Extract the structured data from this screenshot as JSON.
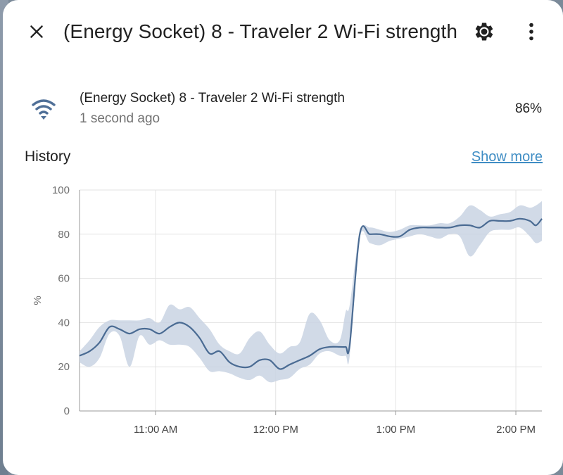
{
  "dialog": {
    "title": "(Energy Socket) 8 - Traveler 2 Wi-Fi strength",
    "close_icon": "close-icon",
    "settings_icon": "gear-icon",
    "more_icon": "more-vertical-icon"
  },
  "entity": {
    "icon": "wifi-icon",
    "name": "(Energy Socket) 8 - Traveler 2 Wi-Fi strength",
    "last_changed": "1 second ago",
    "state": "86%"
  },
  "history": {
    "title": "History",
    "show_more": "Show more"
  },
  "colors": {
    "line": "#4a6b93",
    "band": "#c9d4e3",
    "link": "#3f8dc4"
  },
  "chart_data": {
    "type": "line",
    "ylabel": "%",
    "ylim": [
      0,
      100
    ],
    "yticks": [
      0,
      20,
      40,
      60,
      80,
      100
    ],
    "xlim": [
      "10:22",
      "14:13"
    ],
    "xticks": [
      {
        "t": "11:00",
        "label": "11:00 AM"
      },
      {
        "t": "12:00",
        "label": "12:00 PM"
      },
      {
        "t": "13:00",
        "label": "1:00 PM"
      },
      {
        "t": "14:00",
        "label": "2:00 PM"
      }
    ],
    "grid": true,
    "series": [
      {
        "type": "line",
        "x": [
          "10:22",
          "10:27",
          "10:32",
          "10:37",
          "10:42",
          "10:47",
          "10:52",
          "10:57",
          "11:02",
          "11:07",
          "11:12",
          "11:17",
          "11:22",
          "11:27",
          "11:32",
          "11:37",
          "11:42",
          "11:47",
          "11:52",
          "11:57",
          "12:02",
          "12:07",
          "12:12",
          "12:17",
          "12:22",
          "12:27",
          "12:32",
          "12:35",
          "12:37",
          "12:42",
          "12:47",
          "12:52",
          "12:57",
          "13:02",
          "13:07",
          "13:12",
          "13:17",
          "13:22",
          "13:27",
          "13:32",
          "13:37",
          "13:42",
          "13:47",
          "13:52",
          "13:57",
          "14:02",
          "14:07",
          "14:10",
          "14:13"
        ],
        "values": [
          25,
          27,
          31,
          38,
          37,
          35,
          37,
          37,
          35,
          38,
          40,
          38,
          33,
          26,
          27,
          22,
          20,
          20,
          23,
          23,
          19,
          21,
          23,
          25,
          28,
          29,
          29,
          29,
          30,
          80,
          80,
          80,
          79,
          79,
          82,
          83,
          83,
          83,
          83,
          84,
          84,
          83,
          86,
          86,
          86,
          87,
          86,
          84,
          87
        ]
      },
      {
        "type": "band",
        "x": [
          "10:22",
          "10:27",
          "10:32",
          "10:37",
          "10:42",
          "10:47",
          "10:52",
          "10:57",
          "11:02",
          "11:07",
          "11:12",
          "11:17",
          "11:22",
          "11:27",
          "11:32",
          "11:37",
          "11:42",
          "11:47",
          "11:52",
          "11:57",
          "12:02",
          "12:07",
          "12:12",
          "12:17",
          "12:22",
          "12:27",
          "12:32",
          "12:35",
          "12:37",
          "12:42",
          "12:47",
          "12:52",
          "12:57",
          "13:02",
          "13:07",
          "13:12",
          "13:17",
          "13:22",
          "13:27",
          "13:32",
          "13:37",
          "13:42",
          "13:47",
          "13:52",
          "13:57",
          "14:02",
          "14:07",
          "14:10",
          "14:13"
        ],
        "min": [
          22,
          20,
          24,
          35,
          34,
          20,
          34,
          30,
          32,
          30,
          30,
          29,
          24,
          18,
          18,
          17,
          15,
          14,
          16,
          13,
          14,
          15,
          19,
          21,
          26,
          27,
          25,
          25,
          25,
          78,
          76,
          75,
          77,
          78,
          79,
          80,
          79,
          78,
          80,
          79,
          70,
          75,
          81,
          82,
          82,
          83,
          79,
          76,
          77
        ],
        "max": [
          27,
          32,
          38,
          41,
          41,
          41,
          41,
          42,
          40,
          48,
          46,
          47,
          42,
          37,
          30,
          27,
          26,
          33,
          36,
          30,
          26,
          29,
          31,
          44,
          41,
          32,
          32,
          45,
          48,
          81,
          83,
          82,
          81,
          82,
          84,
          84,
          84,
          85,
          85,
          88,
          93,
          91,
          88,
          89,
          90,
          93,
          92,
          93,
          95
        ]
      }
    ]
  }
}
